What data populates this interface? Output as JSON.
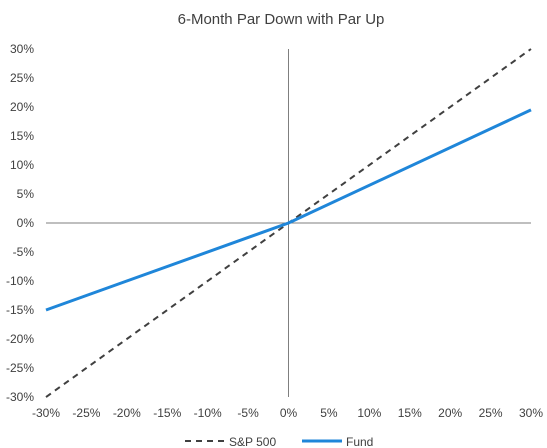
{
  "chart_data": {
    "type": "line",
    "title": "6-Month Par Down with Par Up",
    "xlabel": "",
    "ylabel": "",
    "xlim": [
      -30,
      30
    ],
    "ylim": [
      -30,
      30
    ],
    "x_ticks": [
      "-30%",
      "-25%",
      "-20%",
      "-15%",
      "-10%",
      "-5%",
      "0%",
      "5%",
      "10%",
      "15%",
      "20%",
      "25%",
      "30%"
    ],
    "y_ticks": [
      "30%",
      "25%",
      "20%",
      "15%",
      "10%",
      "5%",
      "0%",
      "-5%",
      "-10%",
      "-15%",
      "-20%",
      "-25%",
      "-30%"
    ],
    "grid": false,
    "legend_position": "bottom",
    "series": [
      {
        "name": "S&P 500",
        "style": "dashed",
        "color": "#404040",
        "x": [
          -30,
          0,
          30
        ],
        "y": [
          -30,
          0,
          30
        ]
      },
      {
        "name": "Fund",
        "style": "solid",
        "color": "#1f86d9",
        "x": [
          -30,
          0,
          30
        ],
        "y": [
          -15,
          0,
          19.5
        ]
      }
    ]
  }
}
